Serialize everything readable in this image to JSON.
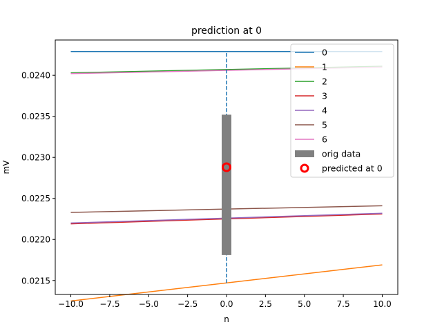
{
  "chart_data": {
    "type": "line",
    "title": "prediction at 0",
    "xlabel": "n",
    "ylabel": "mV",
    "xlim": [
      -11,
      11
    ],
    "ylim": [
      0.02133,
      0.02443
    ],
    "xticks": [
      -10,
      -7.5,
      -5,
      -2.5,
      0,
      2.5,
      5,
      7.5,
      10
    ],
    "xtick_labels": [
      "−10.0",
      "−7.5",
      "−5.0",
      "−2.5",
      "0.0",
      "2.5",
      "5.0",
      "7.5",
      "10.0"
    ],
    "yticks": [
      0.0215,
      0.022,
      0.0225,
      0.023,
      0.0235,
      0.024
    ],
    "ytick_labels": [
      "0.0215",
      "0.0220",
      "0.0225",
      "0.0230",
      "0.0235",
      "0.0240"
    ],
    "grid": false,
    "legend_position": "top-right",
    "series": [
      {
        "name": "0",
        "color": "#1f77b4",
        "x": [
          -10,
          10
        ],
        "y": [
          0.02429,
          0.02429
        ]
      },
      {
        "name": "1",
        "color": "#ff7f0e",
        "x": [
          -10,
          10
        ],
        "y": [
          0.02125,
          0.02169
        ]
      },
      {
        "name": "2",
        "color": "#2ca02c",
        "x": [
          -10,
          10
        ],
        "y": [
          0.02403,
          0.02411
        ]
      },
      {
        "name": "3",
        "color": "#d62728",
        "x": [
          -10,
          10
        ],
        "y": [
          0.02219,
          0.02231
        ]
      },
      {
        "name": "4",
        "color": "#9467bd",
        "x": [
          -10,
          10
        ],
        "y": [
          0.0222,
          0.02232
        ]
      },
      {
        "name": "5",
        "color": "#8c564b",
        "x": [
          -10,
          10
        ],
        "y": [
          0.02233,
          0.02241
        ]
      },
      {
        "name": "6",
        "color": "#e377c2",
        "x": [
          -10,
          10
        ],
        "y": [
          0.02402,
          0.0241
        ]
      }
    ],
    "vertical_line": {
      "x": 0,
      "y": [
        0.02147,
        0.02429
      ],
      "color": "#1f77b4",
      "style": "dashed"
    },
    "orig_data": {
      "name": "orig data",
      "x": 0,
      "y_min": 0.02181,
      "y_max": 0.02352,
      "color": "#808080"
    },
    "predicted": {
      "name": "predicted at 0",
      "x": 0,
      "y": 0.02288,
      "color": "#ff0000"
    }
  }
}
